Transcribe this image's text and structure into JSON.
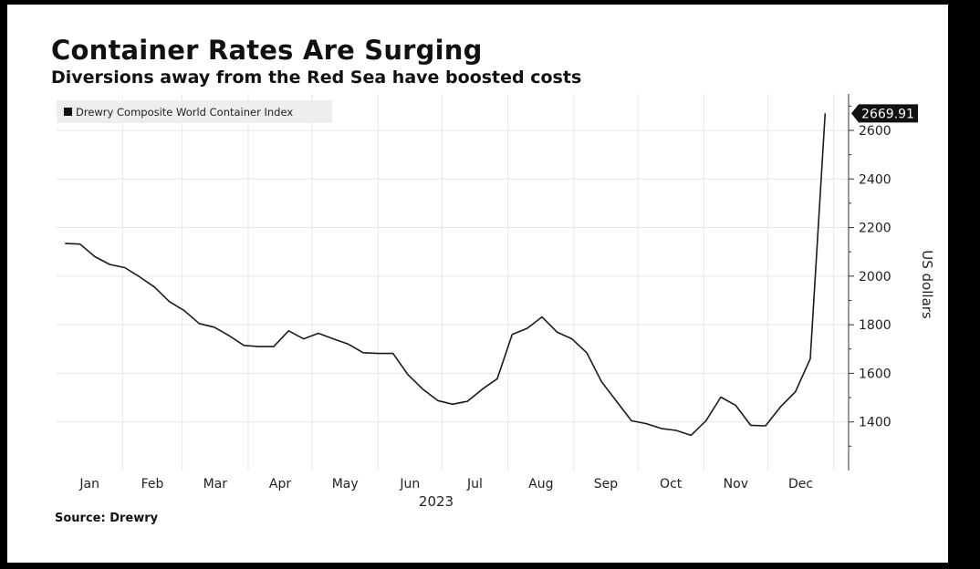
{
  "title": "Container Rates Are Surging",
  "subtitle": "Diversions away from the Red Sea have boosted costs",
  "source": "Source: Drewry",
  "chart_data": {
    "type": "line",
    "title": "Container Rates Are Surging",
    "subtitle": "Diversions away from the Red Sea have boosted costs",
    "ylabel": "US dollars",
    "xlabel": "2023",
    "ylim": [
      1200,
      2750
    ],
    "yticks": [
      1400,
      1600,
      1800,
      2000,
      2200,
      2400,
      2600
    ],
    "x_tick_labels": [
      "Jan",
      "Feb",
      "Mar",
      "Apr",
      "May",
      "Jun",
      "Jul",
      "Aug",
      "Sep",
      "Oct",
      "Nov",
      "Dec"
    ],
    "year_label": "2023",
    "grid": true,
    "legend_position": "top-left",
    "last_value_label": "2669.91",
    "series": [
      {
        "name": "Drewry Composite World Container Index",
        "color": "#1a1a1a",
        "x": [
          "2023-01-05",
          "2023-01-12",
          "2023-01-19",
          "2023-01-26",
          "2023-02-02",
          "2023-02-09",
          "2023-02-16",
          "2023-02-23",
          "2023-03-02",
          "2023-03-09",
          "2023-03-16",
          "2023-03-23",
          "2023-03-30",
          "2023-04-06",
          "2023-04-13",
          "2023-04-20",
          "2023-04-27",
          "2023-05-04",
          "2023-05-11",
          "2023-05-18",
          "2023-05-25",
          "2023-06-01",
          "2023-06-08",
          "2023-06-15",
          "2023-06-22",
          "2023-06-29",
          "2023-07-06",
          "2023-07-13",
          "2023-07-20",
          "2023-07-27",
          "2023-08-03",
          "2023-08-10",
          "2023-08-17",
          "2023-08-24",
          "2023-08-31",
          "2023-09-07",
          "2023-09-14",
          "2023-09-21",
          "2023-09-28",
          "2023-10-05",
          "2023-10-12",
          "2023-10-19",
          "2023-10-26",
          "2023-11-02",
          "2023-11-09",
          "2023-11-16",
          "2023-11-23",
          "2023-11-30",
          "2023-12-07",
          "2023-12-14",
          "2023-12-21",
          "2023-12-28"
        ],
        "y": [
          2135,
          2132,
          2080,
          2048,
          2035,
          1997,
          1955,
          1895,
          1858,
          1805,
          1790,
          1755,
          1715,
          1710,
          1710,
          1775,
          1742,
          1765,
          1742,
          1720,
          1685,
          1682,
          1682,
          1595,
          1535,
          1488,
          1473,
          1485,
          1535,
          1578,
          1760,
          1785,
          1832,
          1770,
          1742,
          1685,
          1565,
          1485,
          1405,
          1393,
          1373,
          1365,
          1345,
          1405,
          1502,
          1468,
          1386,
          1384,
          1462,
          1524,
          1660,
          2669.91
        ]
      }
    ]
  }
}
